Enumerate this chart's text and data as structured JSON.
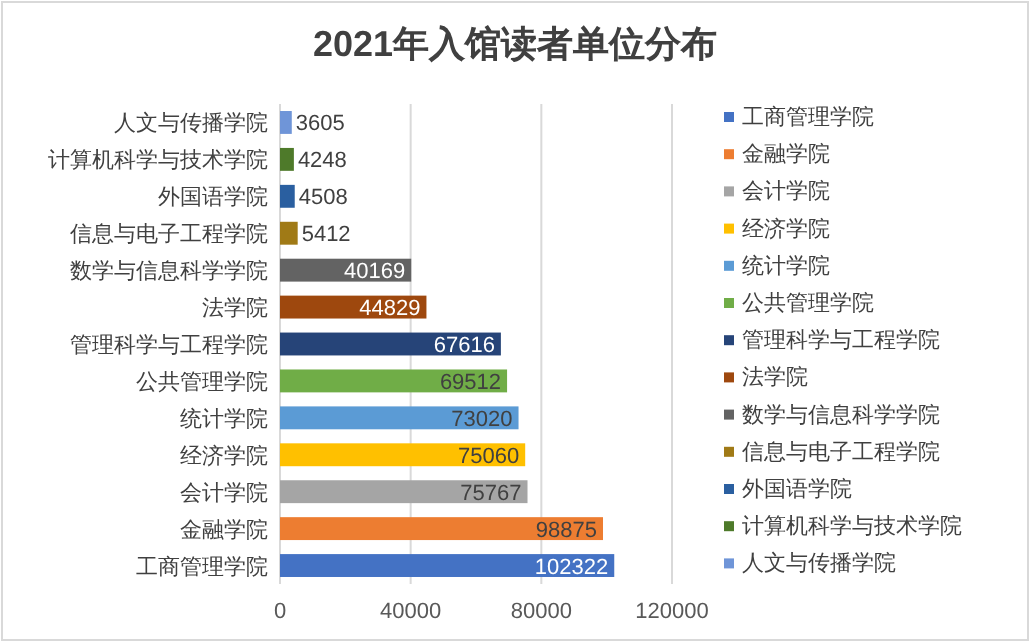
{
  "chart_data": {
    "type": "bar",
    "orientation": "horizontal",
    "stacked": true,
    "title": "2021年入馆读者单位分布",
    "categories": [
      "人文与传播学院",
      "计算机科学与技术学院",
      "外国语学院",
      "信息与电子工程学院",
      "数学与信息科学学院",
      "法学院",
      "管理科学与工程学院",
      "公共管理学院",
      "统计学院",
      "经济学院",
      "会计学院",
      "金融学院",
      "工商管理学院"
    ],
    "series": [
      {
        "name": "工商管理学院",
        "color": "#4472c4",
        "values": [
          null,
          null,
          null,
          null,
          null,
          null,
          null,
          null,
          null,
          null,
          null,
          null,
          102322
        ]
      },
      {
        "name": "金融学院",
        "color": "#ed7d31",
        "values": [
          null,
          null,
          null,
          null,
          null,
          null,
          null,
          null,
          null,
          null,
          null,
          98875,
          null
        ]
      },
      {
        "name": "会计学院",
        "color": "#a5a5a5",
        "values": [
          null,
          null,
          null,
          null,
          null,
          null,
          null,
          null,
          null,
          null,
          75767,
          null,
          null
        ]
      },
      {
        "name": "经济学院",
        "color": "#ffc000",
        "values": [
          null,
          null,
          null,
          null,
          null,
          null,
          null,
          null,
          null,
          75060,
          null,
          null,
          null
        ]
      },
      {
        "name": "统计学院",
        "color": "#5b9bd5",
        "values": [
          null,
          null,
          null,
          null,
          null,
          null,
          null,
          null,
          73020,
          null,
          null,
          null,
          null
        ]
      },
      {
        "name": "公共管理学院",
        "color": "#70ad47",
        "values": [
          null,
          null,
          null,
          null,
          null,
          null,
          null,
          69512,
          null,
          null,
          null,
          null,
          null
        ]
      },
      {
        "name": "管理科学与工程学院",
        "color": "#264478",
        "values": [
          null,
          null,
          null,
          null,
          null,
          null,
          67616,
          null,
          null,
          null,
          null,
          null,
          null
        ]
      },
      {
        "name": "法学院",
        "color": "#9e480e",
        "values": [
          null,
          null,
          null,
          null,
          null,
          44829,
          null,
          null,
          null,
          null,
          null,
          null,
          null
        ]
      },
      {
        "name": "数学与信息科学学院",
        "color": "#636363",
        "values": [
          null,
          null,
          null,
          null,
          40169,
          null,
          null,
          null,
          null,
          null,
          null,
          null,
          null
        ]
      },
      {
        "name": "信息与电子工程学院",
        "color": "#a07a16",
        "values": [
          null,
          null,
          null,
          5412,
          null,
          null,
          null,
          null,
          null,
          null,
          null,
          null,
          null
        ]
      },
      {
        "name": "外国语学院",
        "color": "#2a5fa0",
        "values": [
          null,
          null,
          4508,
          null,
          null,
          null,
          null,
          null,
          null,
          null,
          null,
          null,
          null
        ]
      },
      {
        "name": "计算机科学与技术学院",
        "color": "#4e7a2a",
        "values": [
          null,
          4248,
          null,
          null,
          null,
          null,
          null,
          null,
          null,
          null,
          null,
          null,
          null
        ]
      },
      {
        "name": "人文与传播学院",
        "color": "#6f95d8",
        "values": [
          3605,
          null,
          null,
          null,
          null,
          null,
          null,
          null,
          null,
          null,
          null,
          null,
          null
        ]
      }
    ],
    "xlim": [
      0,
      120000
    ],
    "xticks": [
      0,
      40000,
      80000,
      120000
    ],
    "grid": "x",
    "legend": "right",
    "data_labels": true
  }
}
